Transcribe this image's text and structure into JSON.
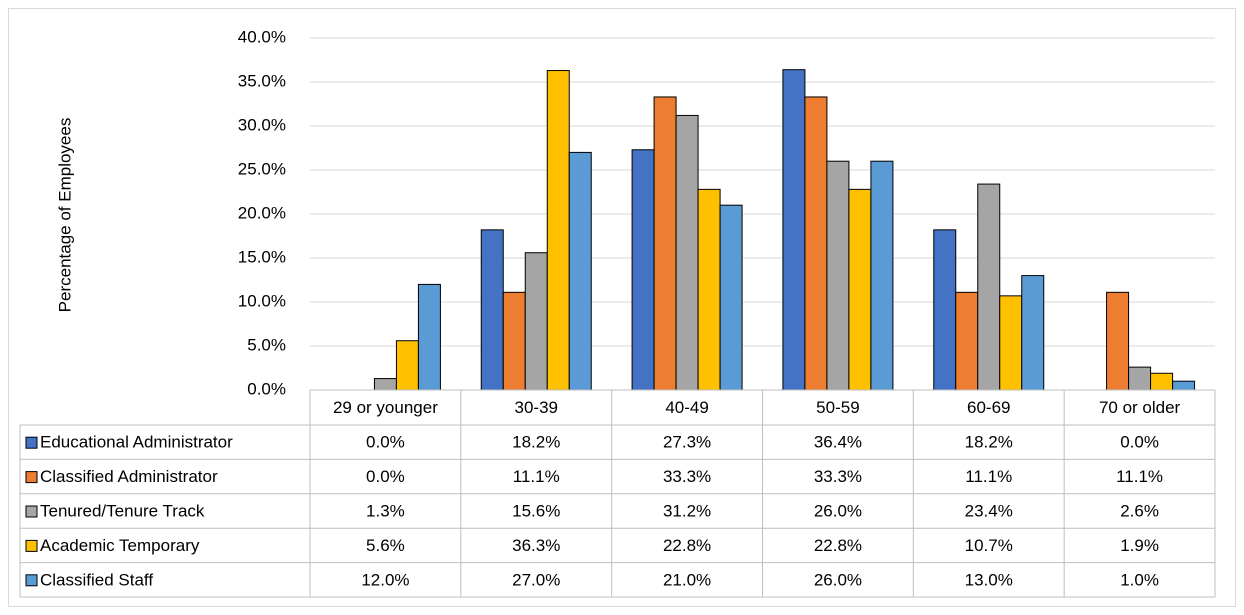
{
  "chart_data": {
    "type": "bar",
    "ylabel": "Percentage of Employees",
    "categories": [
      "29 or younger",
      "30-39",
      "40-49",
      "50-59",
      "60-69",
      "70 or older"
    ],
    "series": [
      {
        "name": "Educational Administrator",
        "color": "#4472c4",
        "values": [
          0.0,
          18.2,
          27.3,
          36.4,
          18.2,
          0.0
        ],
        "value_labels": [
          "0.0%",
          "18.2%",
          "27.3%",
          "36.4%",
          "18.2%",
          "0.0%"
        ]
      },
      {
        "name": "Classified Administrator",
        "color": "#ed7d31",
        "values": [
          0.0,
          11.1,
          33.3,
          33.3,
          11.1,
          11.1
        ],
        "value_labels": [
          "0.0%",
          "11.1%",
          "33.3%",
          "33.3%",
          "11.1%",
          "11.1%"
        ]
      },
      {
        "name": "Tenured/Tenure Track",
        "color": "#a5a5a5",
        "values": [
          1.3,
          15.6,
          31.2,
          26.0,
          23.4,
          2.6
        ],
        "value_labels": [
          "1.3%",
          "15.6%",
          "31.2%",
          "26.0%",
          "23.4%",
          "2.6%"
        ]
      },
      {
        "name": "Academic Temporary",
        "color": "#ffc000",
        "values": [
          5.6,
          36.3,
          22.8,
          22.8,
          10.7,
          1.9
        ],
        "value_labels": [
          "5.6%",
          "36.3%",
          "22.8%",
          "22.8%",
          "10.7%",
          "1.9%"
        ]
      },
      {
        "name": "Classified Staff",
        "color": "#5b9bd5",
        "values": [
          12.0,
          27.0,
          21.0,
          26.0,
          13.0,
          1.0
        ],
        "value_labels": [
          "12.0%",
          "27.0%",
          "21.0%",
          "26.0%",
          "13.0%",
          "1.0%"
        ]
      }
    ],
    "ylim": [
      0,
      40
    ],
    "yticks": [
      {
        "value": 0,
        "label": "0.0%"
      },
      {
        "value": 5,
        "label": "5.0%"
      },
      {
        "value": 10,
        "label": "10.0%"
      },
      {
        "value": 15,
        "label": "15.0%"
      },
      {
        "value": 20,
        "label": "20.0%"
      },
      {
        "value": 25,
        "label": "25.0%"
      },
      {
        "value": 30,
        "label": "30.0%"
      },
      {
        "value": 35,
        "label": "35.0%"
      },
      {
        "value": 40,
        "label": "40.0%"
      }
    ],
    "grid": true
  }
}
